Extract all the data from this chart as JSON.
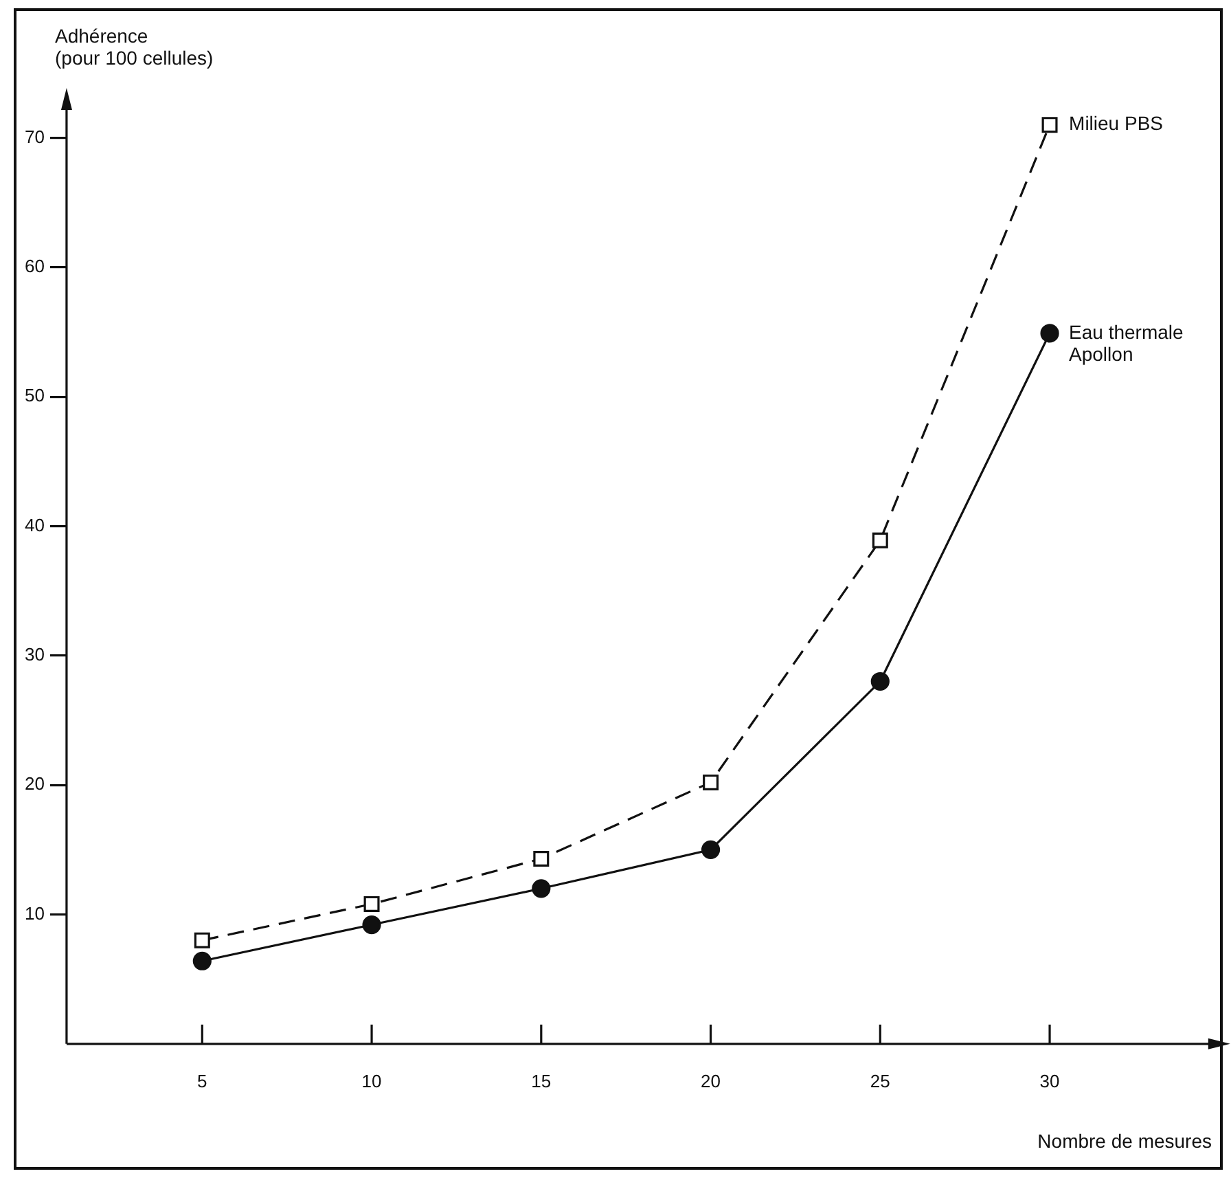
{
  "chart_data": {
    "type": "line",
    "ylabel": "Adhérence\n(pour 100 cellules)",
    "xlabel": "Nombre de mesures",
    "x": [
      5,
      10,
      15,
      20,
      25,
      30
    ],
    "series": [
      {
        "name": "Milieu PBS",
        "color": "#111111",
        "values": [
          8,
          10.8,
          14.3,
          20.2,
          38.9,
          71
        ],
        "marker": "square",
        "line_style": "dashed"
      },
      {
        "name": "Eau thermale Apollon",
        "color": "#111111",
        "values": [
          6.4,
          9.2,
          12,
          15,
          28,
          54.9
        ],
        "marker": "circle",
        "line_style": "solid"
      }
    ],
    "xlim": [
      1,
      35
    ],
    "xticks": [
      5,
      10,
      15,
      20,
      25,
      30
    ],
    "ylim": [
      0,
      73
    ],
    "yticks": [
      10,
      20,
      30,
      40,
      50,
      60,
      70
    ]
  }
}
